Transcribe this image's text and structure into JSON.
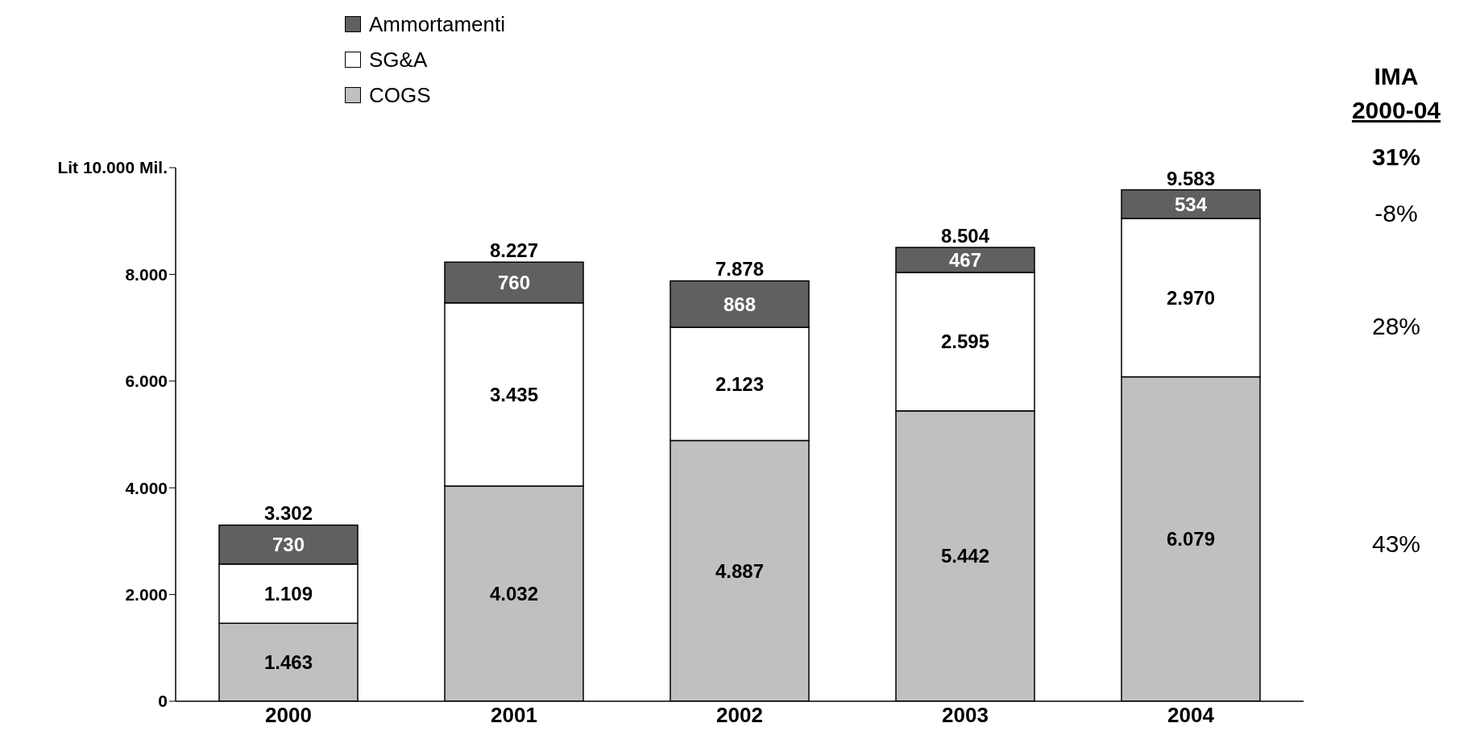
{
  "chart_data": {
    "type": "bar",
    "stacked": true,
    "categories": [
      "2000",
      "2001",
      "2002",
      "2003",
      "2004"
    ],
    "series": [
      {
        "name": "COGS",
        "color": "#c0c0c0",
        "values": [
          1463,
          4032,
          4887,
          5442,
          6079
        ],
        "value_labels": [
          "1.463",
          "4.032",
          "4.887",
          "5.442",
          "6.079"
        ]
      },
      {
        "name": "SG&A",
        "color": "#ffffff",
        "values": [
          1109,
          3435,
          2123,
          2595,
          2970
        ],
        "value_labels": [
          "1.109",
          "3.435",
          "2.123",
          "2.595",
          "2.970"
        ]
      },
      {
        "name": "Ammortamenti",
        "color": "#606060",
        "values": [
          730,
          760,
          868,
          467,
          534
        ],
        "value_labels": [
          "730",
          "760",
          "868",
          "467",
          "534"
        ]
      }
    ],
    "totals": [
      "3.302",
      "8.227",
      "7.878",
      "8.504",
      "9.583"
    ],
    "ylim": [
      0,
      10000
    ],
    "yticks": [
      {
        "value": 0,
        "label": "0"
      },
      {
        "value": 2000,
        "label": "2.000"
      },
      {
        "value": 4000,
        "label": "4.000"
      },
      {
        "value": 6000,
        "label": "6.000"
      },
      {
        "value": 8000,
        "label": "8.000"
      },
      {
        "value": 10000,
        "label": "Lit 10.000 Mil."
      }
    ],
    "grid": false,
    "legend": "top left",
    "annotations": [
      "IMA",
      "2000-04",
      "31%",
      "-8%",
      "28%",
      "43%"
    ]
  }
}
